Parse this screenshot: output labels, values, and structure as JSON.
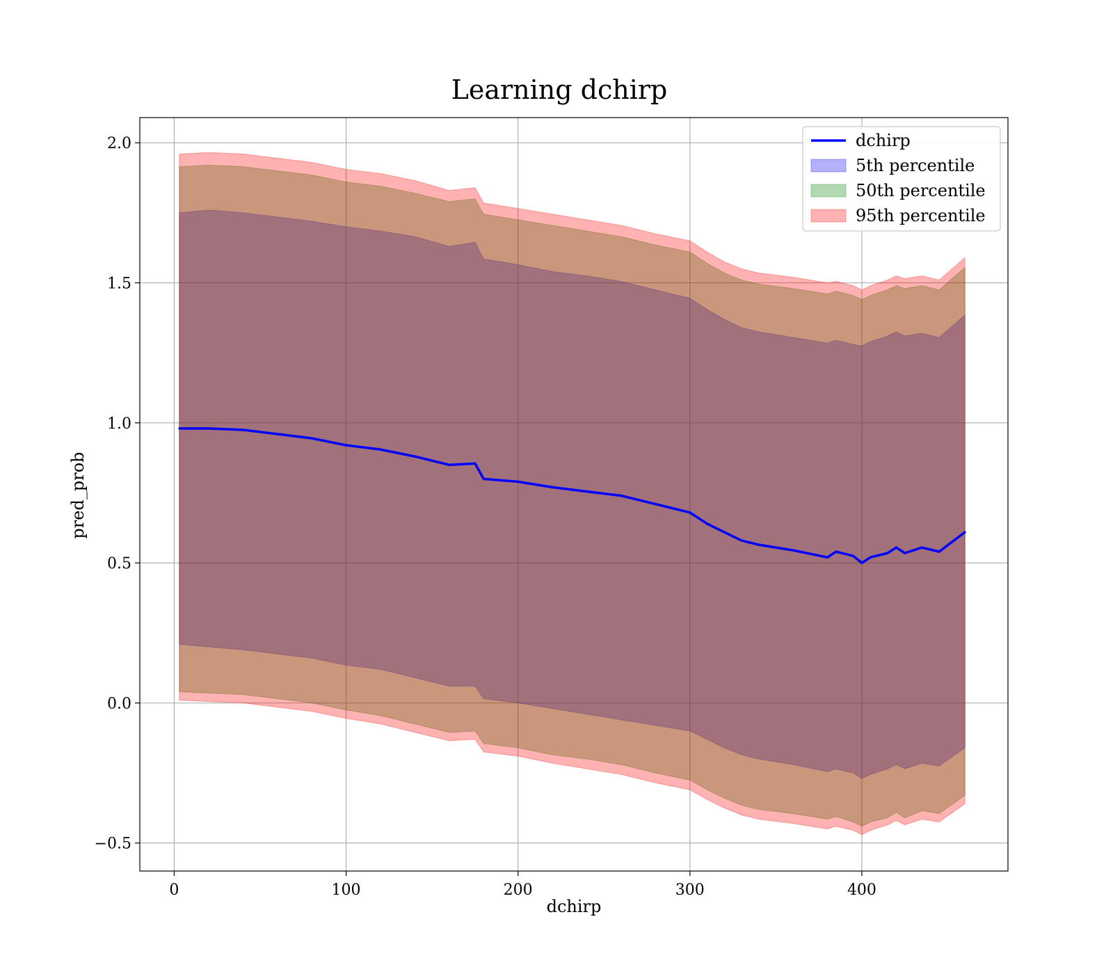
{
  "chart_data": {
    "type": "area",
    "title": "Learning dchirp",
    "xlabel": "dchirp",
    "ylabel": "pred_prob",
    "xlim": [
      -20,
      485
    ],
    "ylim": [
      -0.6,
      2.09
    ],
    "xticks": [
      0,
      100,
      200,
      300,
      400
    ],
    "yticks": [
      -0.5,
      0.0,
      0.5,
      1.0,
      1.5,
      2.0
    ],
    "ytick_labels": [
      "−0.5",
      "0.0",
      "0.5",
      "1.0",
      "1.5",
      "2.0"
    ],
    "grid": true,
    "legend_position": "top-right",
    "x": [
      3,
      20,
      40,
      60,
      80,
      100,
      120,
      140,
      160,
      175,
      180,
      200,
      220,
      240,
      260,
      280,
      300,
      310,
      320,
      330,
      340,
      360,
      380,
      385,
      395,
      400,
      405,
      415,
      420,
      425,
      435,
      445,
      460
    ],
    "series": [
      {
        "name": "dchirp",
        "kind": "line",
        "color": "#0000ff",
        "values": [
          0.98,
          0.98,
          0.975,
          0.96,
          0.945,
          0.92,
          0.905,
          0.88,
          0.85,
          0.855,
          0.8,
          0.79,
          0.77,
          0.755,
          0.74,
          0.71,
          0.68,
          0.64,
          0.61,
          0.58,
          0.565,
          0.545,
          0.52,
          0.54,
          0.525,
          0.5,
          0.52,
          0.535,
          0.555,
          0.535,
          0.555,
          0.54,
          0.61
        ]
      },
      {
        "name": "5th percentile",
        "kind": "band",
        "color": "#0000ff",
        "opacity": 0.3,
        "lower": [
          0.21,
          0.2,
          0.19,
          0.175,
          0.16,
          0.135,
          0.12,
          0.09,
          0.06,
          0.06,
          0.015,
          0.0,
          -0.02,
          -0.04,
          -0.06,
          -0.08,
          -0.1,
          -0.13,
          -0.16,
          -0.185,
          -0.2,
          -0.22,
          -0.245,
          -0.235,
          -0.25,
          -0.27,
          -0.255,
          -0.235,
          -0.22,
          -0.235,
          -0.215,
          -0.225,
          -0.16
        ],
        "upper": [
          1.75,
          1.76,
          1.75,
          1.735,
          1.72,
          1.7,
          1.685,
          1.665,
          1.63,
          1.645,
          1.585,
          1.565,
          1.54,
          1.525,
          1.505,
          1.475,
          1.445,
          1.405,
          1.37,
          1.34,
          1.325,
          1.305,
          1.285,
          1.295,
          1.28,
          1.275,
          1.29,
          1.31,
          1.325,
          1.31,
          1.32,
          1.305,
          1.385
        ]
      },
      {
        "name": "50th percentile",
        "kind": "band",
        "color": "#008000",
        "opacity": 0.3,
        "lower": [
          0.04,
          0.035,
          0.03,
          0.015,
          0.0,
          -0.025,
          -0.045,
          -0.075,
          -0.105,
          -0.1,
          -0.145,
          -0.16,
          -0.185,
          -0.2,
          -0.22,
          -0.25,
          -0.275,
          -0.31,
          -0.34,
          -0.365,
          -0.38,
          -0.395,
          -0.415,
          -0.405,
          -0.425,
          -0.44,
          -0.425,
          -0.41,
          -0.39,
          -0.41,
          -0.385,
          -0.395,
          -0.33
        ],
        "upper": [
          1.915,
          1.92,
          1.915,
          1.9,
          1.885,
          1.86,
          1.845,
          1.82,
          1.79,
          1.8,
          1.745,
          1.725,
          1.705,
          1.685,
          1.665,
          1.635,
          1.61,
          1.57,
          1.535,
          1.51,
          1.495,
          1.48,
          1.46,
          1.47,
          1.455,
          1.44,
          1.455,
          1.475,
          1.49,
          1.48,
          1.49,
          1.475,
          1.555
        ]
      },
      {
        "name": "95th percentile",
        "kind": "band",
        "color": "#ff0000",
        "opacity": 0.3,
        "lower": [
          0.01,
          0.005,
          0.0,
          -0.015,
          -0.03,
          -0.055,
          -0.075,
          -0.105,
          -0.135,
          -0.13,
          -0.175,
          -0.19,
          -0.215,
          -0.235,
          -0.255,
          -0.285,
          -0.31,
          -0.345,
          -0.375,
          -0.4,
          -0.415,
          -0.43,
          -0.45,
          -0.44,
          -0.455,
          -0.47,
          -0.455,
          -0.435,
          -0.42,
          -0.435,
          -0.415,
          -0.425,
          -0.36
        ],
        "upper": [
          1.96,
          1.965,
          1.96,
          1.945,
          1.93,
          1.905,
          1.89,
          1.865,
          1.83,
          1.84,
          1.785,
          1.765,
          1.745,
          1.725,
          1.705,
          1.675,
          1.65,
          1.61,
          1.575,
          1.55,
          1.535,
          1.52,
          1.5,
          1.505,
          1.49,
          1.475,
          1.49,
          1.51,
          1.525,
          1.515,
          1.525,
          1.51,
          1.59
        ]
      }
    ]
  }
}
